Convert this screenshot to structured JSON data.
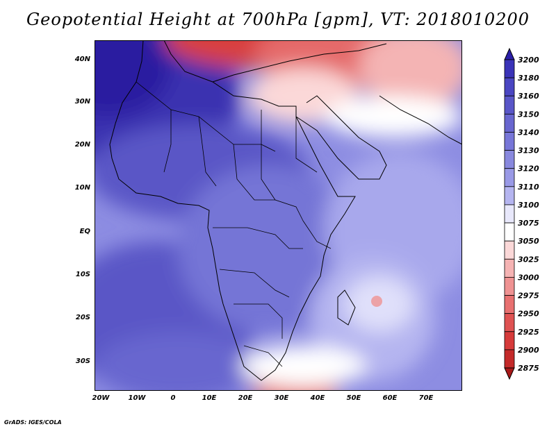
{
  "title": "Geopotential Height at 700hPa [gpm], VT: 2018010200",
  "credit": "GrADS: IGES/COLA",
  "map": {
    "region": "Africa and Arabian Peninsula",
    "variable": "Geopotential Height",
    "level": "700hPa",
    "units": "gpm",
    "valid_time": "2018010200",
    "lon_range": [
      -25,
      80
    ],
    "lat_range": [
      -37,
      45
    ],
    "lat_ticks": [
      "40N",
      "30N",
      "20N",
      "10N",
      "EQ",
      "10S",
      "20S",
      "30S"
    ],
    "lon_ticks": [
      "20W",
      "10W",
      "0",
      "10E",
      "20E",
      "30E",
      "40E",
      "50E",
      "60E",
      "70E"
    ]
  },
  "colorbar": {
    "levels": [
      "3200",
      "3180",
      "3160",
      "3150",
      "3140",
      "3130",
      "3120",
      "3110",
      "3100",
      "3075",
      "3050",
      "3025",
      "3000",
      "2975",
      "2950",
      "2925",
      "2900",
      "2875"
    ],
    "colors": [
      "#2b1fa8",
      "#3a33b8",
      "#4a46c2",
      "#5956c8",
      "#6866cf",
      "#7776d8",
      "#8888de",
      "#9999e6",
      "#b5b5f0",
      "#e8e8fb",
      "#ffffff",
      "#fbd8d8",
      "#f5b3b3",
      "#ef9292",
      "#e87070",
      "#df5252",
      "#d63a3a",
      "#c42a2a",
      "#a81818"
    ]
  }
}
